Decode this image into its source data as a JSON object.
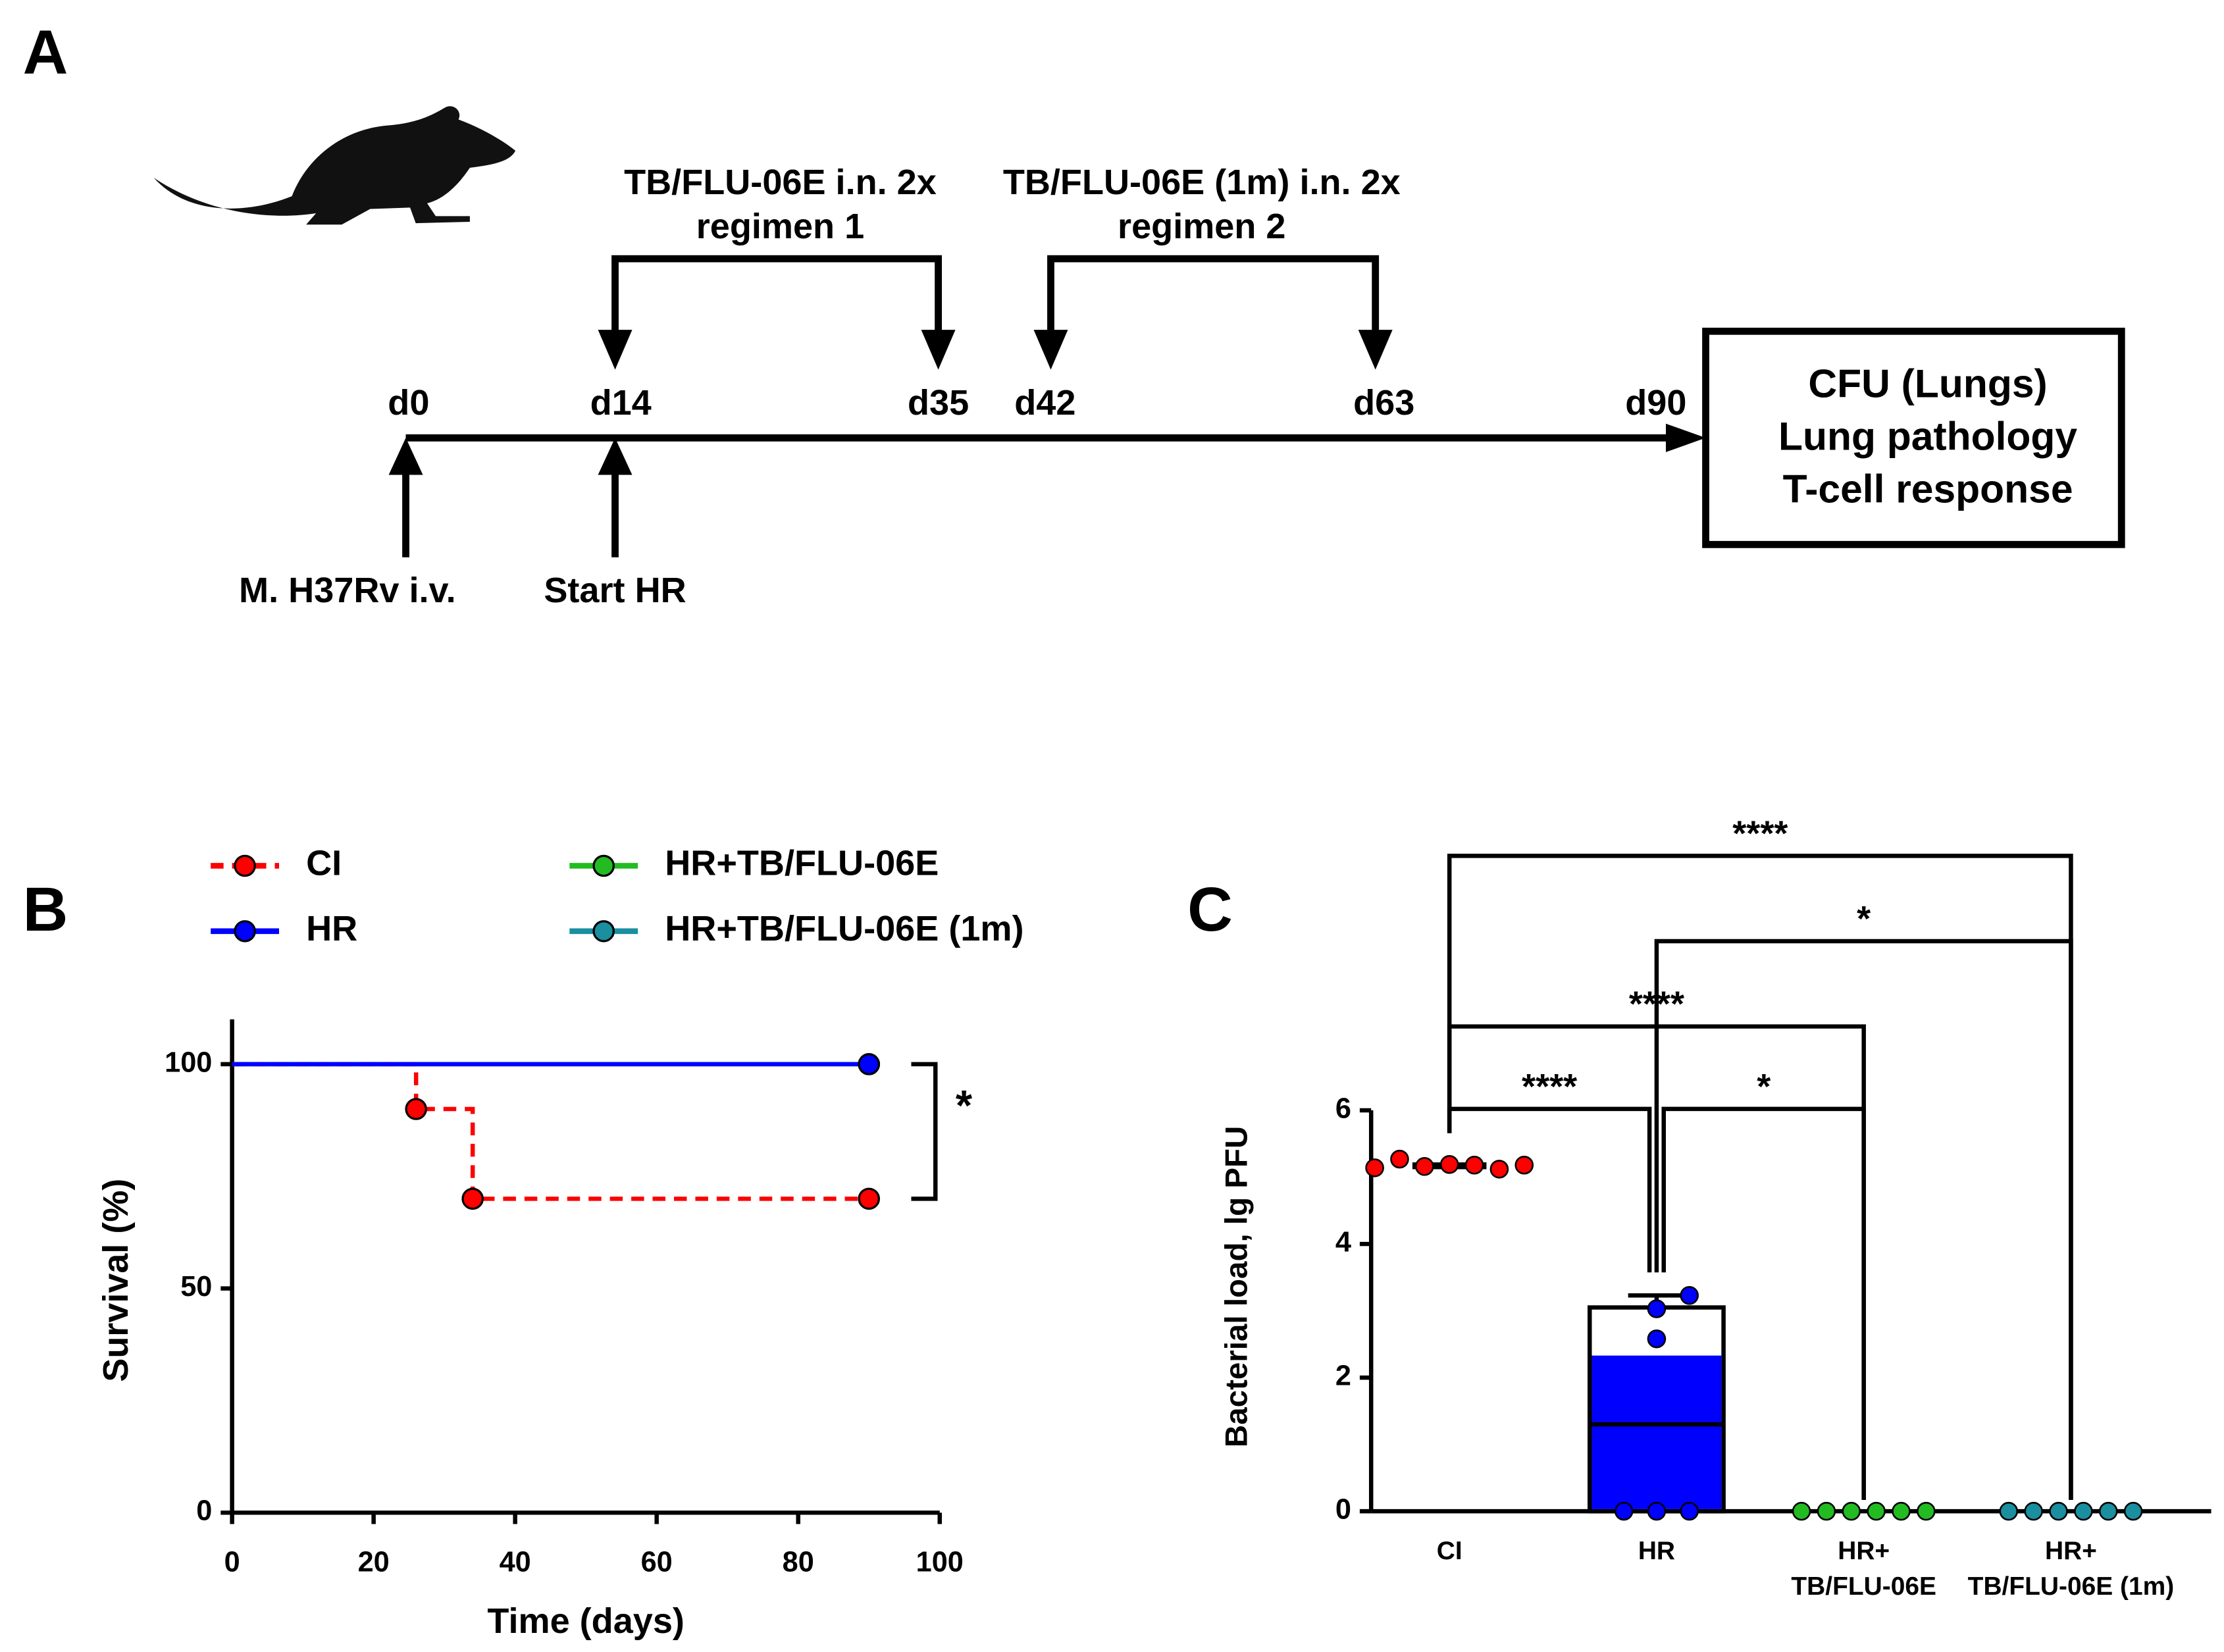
{
  "panel_a": {
    "label": "A",
    "timeline": [
      "d0",
      "d14",
      "d35",
      "d42",
      "d63",
      "d90"
    ],
    "regimens": [
      {
        "name": "TB/FLU-06E i.n. 2x",
        "subtitle": "regimen 1"
      },
      {
        "name": "TB/FLU-06E (1m) i.n. 2x",
        "subtitle": "regimen 2"
      }
    ],
    "events": [
      "M. H37Rv i.v.",
      "Start HR"
    ],
    "readouts": [
      "CFU (Lungs)",
      "Lung pathology",
      "T-cell response"
    ]
  },
  "chart_data": [
    {
      "type": "line",
      "panel": "B",
      "step": true,
      "xlabel": "Time (days)",
      "ylabel": "Survival (%)",
      "xlim": [
        0,
        100
      ],
      "xticks": [
        0,
        20,
        40,
        60,
        80,
        100
      ],
      "ylim": [
        0,
        110
      ],
      "yticks": [
        0,
        50,
        100
      ],
      "annotations": [
        "*"
      ],
      "series": [
        {
          "name": "CI",
          "color": "#ff0000",
          "dashed": true,
          "x": [
            0,
            26,
            34,
            90
          ],
          "values": [
            100,
            90,
            70,
            70
          ]
        },
        {
          "name": "HR",
          "color": "#0000ff",
          "x": [
            0,
            90
          ],
          "values": [
            100,
            100
          ]
        },
        {
          "name": "HR+TB/FLU-06E",
          "color": "#22bb22",
          "x": [
            0,
            90
          ],
          "values": [
            100,
            100
          ]
        },
        {
          "name": "HR+TB/FLU-06E (1m)",
          "color": "#1a8fa0",
          "x": [
            0,
            90
          ],
          "values": [
            100,
            100
          ]
        }
      ]
    },
    {
      "type": "box",
      "panel": "C",
      "ylabel": "Bacterial load, lg PFU",
      "categories": [
        "CI",
        "HR",
        "HR+\nTB/FLU-06E",
        "HR+\nTB/FLU-06E (1m)"
      ],
      "colors": [
        "#ff0000",
        "#0000ff",
        "#22bb22",
        "#1a8fa0"
      ],
      "ylim": [
        0,
        6
      ],
      "yticks": [
        0,
        2,
        4,
        6
      ],
      "q1": [
        5.14,
        0,
        0,
        0
      ],
      "medians": [
        5.18,
        1.3,
        0,
        0
      ],
      "q3": [
        5.2,
        3.05,
        0,
        0
      ],
      "whisker_high": [
        5.27,
        3.23,
        0,
        0
      ],
      "shaded_to": [
        null,
        2.33,
        null,
        null
      ],
      "points": [
        [
          5.14,
          5.27,
          5.16,
          5.19,
          5.18,
          5.12,
          5.18
        ],
        [
          0,
          3.03,
          2.58,
          0,
          3.23,
          0
        ],
        [
          0,
          0,
          0,
          0,
          0,
          0
        ],
        [
          0,
          0,
          0,
          0,
          0,
          0
        ]
      ],
      "comparisons": [
        "****",
        "*",
        "****",
        "****",
        "*"
      ]
    }
  ]
}
